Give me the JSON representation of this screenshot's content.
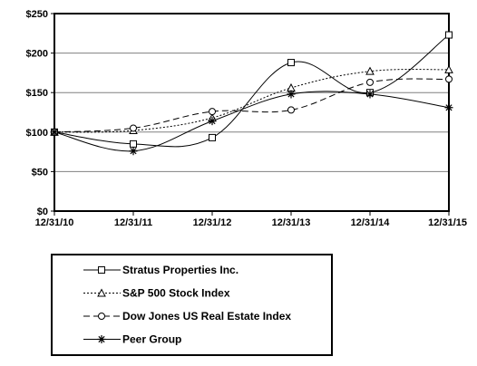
{
  "chart_data": {
    "type": "line",
    "title": "",
    "xlabel": "",
    "ylabel": "",
    "categories": [
      "12/31/10",
      "12/31/11",
      "12/31/12",
      "12/31/13",
      "12/31/14",
      "12/31/15"
    ],
    "y_ticks": [
      "$0",
      "$50",
      "$100",
      "$150",
      "$200",
      "$250"
    ],
    "ylim": [
      0,
      250
    ],
    "grid": "horizontal",
    "legend": "bottom",
    "series": [
      {
        "name": "Stratus Properties Inc.",
        "values": [
          100,
          85,
          93,
          188,
          150,
          223
        ],
        "marker": "square",
        "dash": "solid"
      },
      {
        "name": "S&P 500 Stock Index",
        "values": [
          100,
          102,
          118,
          156,
          177,
          179
        ],
        "marker": "triangle",
        "dash": "dotted"
      },
      {
        "name": "Dow Jones US Real Estate Index",
        "values": [
          100,
          105,
          126,
          128,
          163,
          167
        ],
        "marker": "circle",
        "dash": "dashed"
      },
      {
        "name": "Peer Group",
        "values": [
          100,
          76,
          114,
          148,
          148,
          131
        ],
        "marker": "star",
        "dash": "solid"
      }
    ]
  }
}
